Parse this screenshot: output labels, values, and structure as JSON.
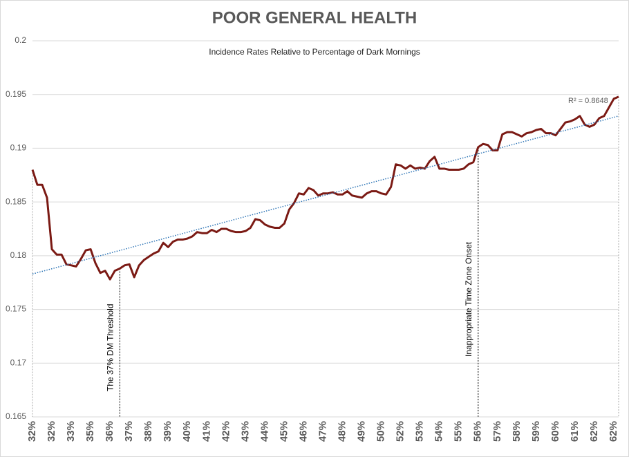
{
  "chart_data": {
    "type": "line",
    "title": "POOR GENERAL HEALTH",
    "subtitle": "Incidence Rates Relative to Percentage of Dark Mornings",
    "categories": [
      "32%",
      null,
      null,
      null,
      "32%",
      null,
      null,
      null,
      "33%",
      null,
      null,
      null,
      "35%",
      null,
      null,
      null,
      "36%",
      null,
      null,
      null,
      "37%",
      null,
      null,
      null,
      "38%",
      null,
      null,
      null,
      "39%",
      null,
      null,
      null,
      "40%",
      null,
      null,
      null,
      "41%",
      null,
      null,
      null,
      "42%",
      null,
      null,
      null,
      "43%",
      null,
      null,
      null,
      "44%",
      null,
      null,
      null,
      "45%",
      null,
      null,
      null,
      "46%",
      null,
      null,
      null,
      "47%",
      null,
      null,
      null,
      "48%",
      null,
      null,
      null,
      "49%",
      null,
      null,
      null,
      "50%",
      null,
      null,
      null,
      "52%",
      null,
      null,
      null,
      "53%",
      null,
      null,
      null,
      "54%",
      null,
      null,
      null,
      "55%",
      null,
      null,
      null,
      "56%",
      null,
      null,
      null,
      "57%",
      null,
      null,
      null,
      "58%",
      null,
      null,
      null,
      "59%",
      null,
      null,
      null,
      "60%",
      null,
      null,
      null,
      "61%",
      null,
      null,
      null,
      "62%",
      null,
      null,
      null,
      "62%",
      null
    ],
    "series": [
      {
        "color": "#7b1a14",
        "values": [
          0.188,
          0.1866,
          0.1866,
          0.1854,
          0.1806,
          0.1801,
          0.1801,
          0.1792,
          0.1791,
          0.179,
          0.1797,
          0.1805,
          0.1806,
          0.1793,
          0.1784,
          0.1786,
          0.1778,
          0.1786,
          0.1788,
          0.1791,
          0.1792,
          0.178,
          0.1791,
          0.1796,
          0.1799,
          0.1802,
          0.1804,
          0.1812,
          0.1808,
          0.1813,
          0.1815,
          0.1815,
          0.1816,
          0.1818,
          0.1822,
          0.1821,
          0.1821,
          0.1824,
          0.1822,
          0.1825,
          0.1825,
          0.1823,
          0.1822,
          0.1822,
          0.1823,
          0.1826,
          0.1834,
          0.1833,
          0.1829,
          0.1827,
          0.1826,
          0.1826,
          0.183,
          0.1843,
          0.1849,
          0.1858,
          0.1857,
          0.1863,
          0.1861,
          0.1856,
          0.1858,
          0.1858,
          0.1859,
          0.1857,
          0.1857,
          0.186,
          0.1856,
          0.1855,
          0.1854,
          0.1858,
          0.186,
          0.186,
          0.1858,
          0.1857,
          0.1864,
          0.1885,
          0.1884,
          0.1881,
          0.1884,
          0.1881,
          0.1882,
          0.1881,
          0.1888,
          0.1892,
          0.1881,
          0.1881,
          0.188,
          0.188,
          0.188,
          0.1881,
          0.1885,
          0.1887,
          0.1901,
          0.1904,
          0.1903,
          0.1898,
          0.1898,
          0.1913,
          0.1915,
          0.1915,
          0.1913,
          0.1911,
          0.1914,
          0.1915,
          0.1917,
          0.1918,
          0.1914,
          0.1914,
          0.1912,
          0.1918,
          0.1924,
          0.1925,
          0.1927,
          0.193,
          0.1922,
          0.192,
          0.1922,
          0.1928,
          0.193,
          0.1938,
          0.1946,
          0.1948
        ]
      }
    ],
    "trendline": {
      "values": [
        0.1783,
        0.193
      ],
      "color": "#2e75b6",
      "label": "R² = 0.8648"
    },
    "annotations": [
      {
        "text": "The 37% DM Threshold",
        "index": 18
      },
      {
        "text": "Inappropriate Time Zone Onset",
        "index": 92
      }
    ],
    "ylim": [
      0.165,
      0.2
    ],
    "yticks": [
      0.165,
      0.17,
      0.175,
      0.18,
      0.185,
      0.19,
      0.195,
      0.2
    ],
    "grid": true
  }
}
